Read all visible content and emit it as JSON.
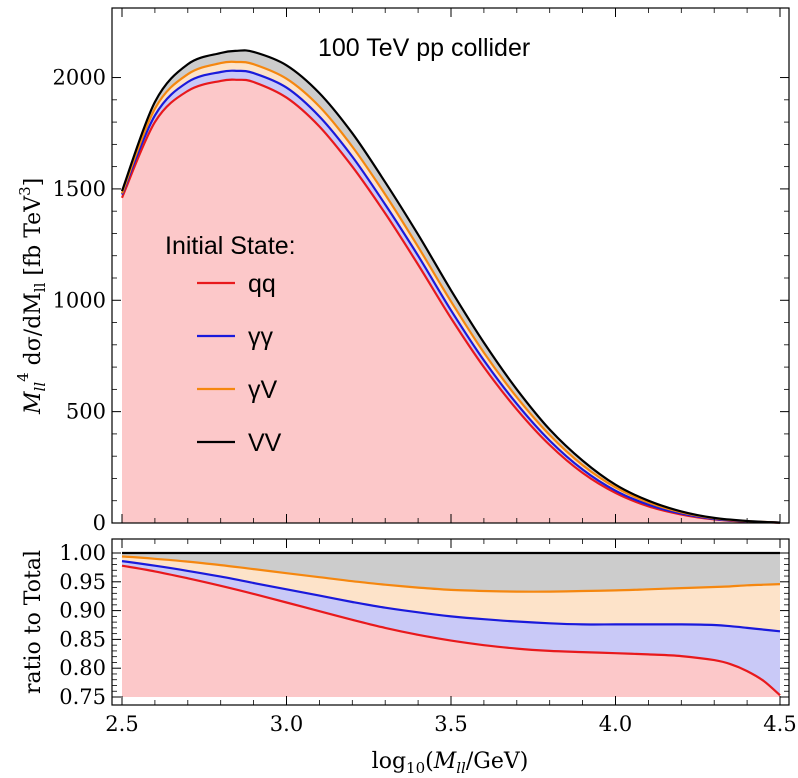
{
  "chart_data": [
    {
      "type": "area",
      "ylabel_parts": {
        "m": "M",
        "sub": "ll",
        "sup": "4",
        "rest": " dσ/dM",
        "sub2": "ll",
        "unit": " [fb TeV",
        "sup2": "3",
        "close": "]"
      },
      "annotation": "100 TeV pp collider",
      "xlim": [
        2.5,
        4.5
      ],
      "ylim": [
        0,
        2200
      ],
      "y_ticks": [
        0,
        500,
        1000,
        1500,
        2000
      ],
      "legend": {
        "title": "Initial State:",
        "entries": [
          {
            "label": "qq",
            "color": "#e8191c"
          },
          {
            "label": "γγ",
            "color": "#1a1adb"
          },
          {
            "label": "γV",
            "color": "#f5870f"
          },
          {
            "label": "VV",
            "color": "#000000"
          }
        ]
      },
      "x": [
        2.5,
        2.6,
        2.7,
        2.8,
        2.85,
        2.9,
        3.0,
        3.1,
        3.2,
        3.3,
        3.4,
        3.5,
        3.6,
        3.7,
        3.8,
        3.9,
        4.0,
        4.1,
        4.2,
        4.3,
        4.4,
        4.5
      ],
      "series": [
        {
          "label": "qq",
          "color": "#e8191c",
          "fill": "#fcc8c9",
          "values": [
            1460,
            1800,
            1940,
            1985,
            1990,
            1980,
            1910,
            1780,
            1600,
            1390,
            1160,
            920,
            700,
            510,
            350,
            225,
            135,
            75,
            38,
            16,
            6,
            2
          ]
        },
        {
          "label": "γγ",
          "color": "#1a1adb",
          "fill": "#c9c9f7",
          "values": [
            1475,
            1830,
            1980,
            2025,
            2030,
            2020,
            1955,
            1825,
            1645,
            1430,
            1200,
            955,
            730,
            535,
            370,
            240,
            145,
            82,
            42,
            18,
            7,
            2
          ]
        },
        {
          "label": "γV",
          "color": "#f5870f",
          "fill": "#fde3c9",
          "values": [
            1480,
            1860,
            2015,
            2065,
            2070,
            2060,
            1995,
            1870,
            1690,
            1475,
            1240,
            995,
            765,
            565,
            395,
            260,
            160,
            92,
            48,
            21,
            8,
            2
          ]
        },
        {
          "label": "VV",
          "color": "#000000",
          "fill": "#cccccc",
          "values": [
            1490,
            1890,
            2060,
            2110,
            2120,
            2115,
            2055,
            1930,
            1750,
            1530,
            1295,
            1045,
            810,
            600,
            420,
            280,
            172,
            100,
            52,
            23,
            9,
            2
          ]
        }
      ]
    },
    {
      "type": "area",
      "ylabel": "ratio to Total",
      "xlabel_parts": {
        "pre": "log",
        "sub": "10",
        "open": "(",
        "m": "M",
        "msub": "ll",
        "post": "/GeV)"
      },
      "xlim": [
        2.5,
        4.5
      ],
      "ylim": [
        0.75,
        1.0
      ],
      "x_ticks": [
        2.5,
        3.0,
        3.5,
        4.0,
        4.5
      ],
      "x_tick_labels": [
        "2.5",
        "3.0",
        "3.5",
        "4.0",
        "4.5"
      ],
      "y_ticks": [
        0.75,
        0.8,
        0.85,
        0.9,
        0.95,
        1.0
      ],
      "y_tick_labels": [
        "0.75",
        "0.80",
        "0.85",
        "0.90",
        "0.95",
        "1.00"
      ],
      "x": [
        2.5,
        2.6,
        2.7,
        2.8,
        2.9,
        3.0,
        3.1,
        3.2,
        3.3,
        3.4,
        3.5,
        3.6,
        3.7,
        3.8,
        3.9,
        4.0,
        4.1,
        4.2,
        4.3,
        4.35,
        4.4,
        4.45,
        4.5
      ],
      "series": [
        {
          "label": "qq",
          "color": "#e8191c",
          "fill": "#fcc8c9",
          "values": [
            0.978,
            0.968,
            0.956,
            0.943,
            0.929,
            0.914,
            0.899,
            0.884,
            0.87,
            0.858,
            0.848,
            0.84,
            0.834,
            0.83,
            0.828,
            0.826,
            0.824,
            0.821,
            0.814,
            0.807,
            0.795,
            0.778,
            0.753
          ]
        },
        {
          "label": "γγ",
          "color": "#1a1adb",
          "fill": "#c9c9f7",
          "values": [
            0.986,
            0.978,
            0.969,
            0.959,
            0.948,
            0.937,
            0.926,
            0.915,
            0.905,
            0.897,
            0.89,
            0.885,
            0.881,
            0.878,
            0.876,
            0.876,
            0.876,
            0.876,
            0.875,
            0.873,
            0.87,
            0.867,
            0.864
          ]
        },
        {
          "label": "γV",
          "color": "#f5870f",
          "fill": "#fde3c9",
          "values": [
            0.994,
            0.99,
            0.985,
            0.979,
            0.972,
            0.965,
            0.958,
            0.951,
            0.945,
            0.94,
            0.936,
            0.934,
            0.933,
            0.933,
            0.934,
            0.935,
            0.937,
            0.939,
            0.941,
            0.942,
            0.944,
            0.945,
            0.946
          ]
        },
        {
          "label": "VV",
          "color": "#000000",
          "fill": "#cccccc",
          "values": [
            1.0,
            1.0,
            1.0,
            1.0,
            1.0,
            1.0,
            1.0,
            1.0,
            1.0,
            1.0,
            1.0,
            1.0,
            1.0,
            1.0,
            1.0,
            1.0,
            1.0,
            1.0,
            1.0,
            1.0,
            1.0,
            1.0,
            1.0
          ]
        }
      ]
    }
  ]
}
